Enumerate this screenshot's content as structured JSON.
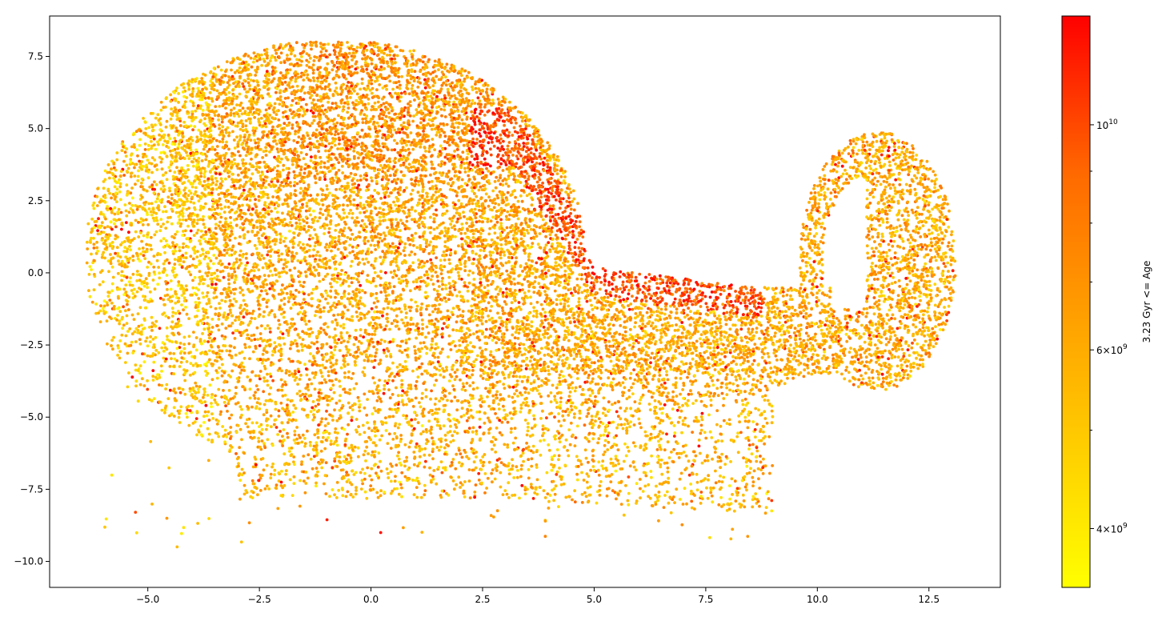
{
  "chart_data": {
    "type": "scatter",
    "title": "",
    "xlabel": "",
    "ylabel": "",
    "xlim": [
      -7.2,
      14.1
    ],
    "ylim": [
      -10.9,
      8.9
    ],
    "x_ticks": [
      -5.0,
      -2.5,
      0.0,
      2.5,
      5.0,
      7.5,
      10.0,
      12.5
    ],
    "x_tick_labels": [
      "−5.0",
      "−2.5",
      "0.0",
      "2.5",
      "5.0",
      "7.5",
      "10.0",
      "12.5"
    ],
    "y_ticks": [
      7.5,
      5.0,
      2.5,
      0.0,
      -2.5,
      -5.0,
      -7.5,
      -10.0
    ],
    "y_tick_labels": [
      "7.5",
      "5.0",
      "2.5",
      "0.0",
      "−2.5",
      "−5.0",
      "−7.5",
      "−10.0"
    ],
    "grid": false,
    "legend": "none",
    "point_count_approx": 60000,
    "point_encoding": "color by Age (log scale)",
    "regions": [
      {
        "name": "main lobe",
        "x_range": [
          -6.3,
          4.0
        ],
        "y_range": [
          -7.0,
          8.0
        ],
        "age_trend": "older along upper-right edge"
      },
      {
        "name": "bridge",
        "x_range": [
          3.5,
          10.0
        ],
        "y_range": [
          -5.0,
          1.5
        ],
        "age_trend": "oldest points along upper edge near x≈4.5–7"
      },
      {
        "name": "right loop",
        "x_range": [
          9.5,
          13.1
        ],
        "y_range": [
          -4.5,
          5.0
        ],
        "age_trend": "mixed"
      },
      {
        "name": "lower tail",
        "x_range": [
          -4.0,
          9.0
        ],
        "y_range": [
          -10.0,
          -4.0
        ],
        "age_trend": "sparse, mostly younger"
      }
    ],
    "colorbar": {
      "label": "3.23 Gyr <= Age",
      "scale": "log",
      "range": [
        3500000000,
        12800000000
      ],
      "colormap": [
        "#ffff00",
        "#ffa500",
        "#ff6a00",
        "#ff0000"
      ],
      "tick_values": [
        4000000000,
        6000000000,
        10000000000
      ],
      "tick_labels": [
        {
          "mantissa": "4",
          "times": "×",
          "base": "10",
          "exponent": "9"
        },
        {
          "mantissa": "6",
          "times": "×",
          "base": "10",
          "exponent": "9"
        },
        {
          "mantissa": "",
          "times": "",
          "base": "10",
          "exponent": "10"
        }
      ],
      "minor_tick_values": [
        5000000000,
        7000000000,
        8000000000,
        9000000000
      ]
    }
  }
}
